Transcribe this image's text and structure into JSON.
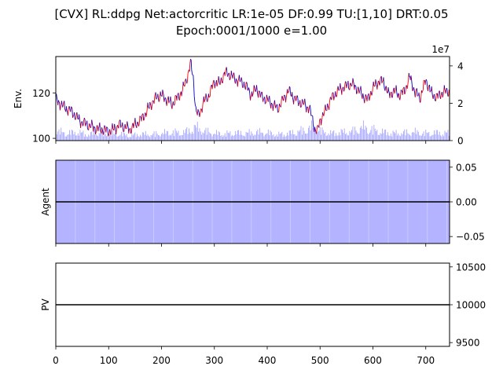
{
  "title_line1": "[CVX] RL:ddpg Net:actorcritic LR:1e-05 DF:0.99 TU:[1,10] DRT:0.05",
  "title_line2": "Epoch:0001/1000 e=1.00",
  "chart_data": [
    {
      "type": "line",
      "name": "env-panel",
      "ylabel": "Env.",
      "xlim": [
        0,
        745
      ],
      "ylim": [
        99,
        136
      ],
      "left_ticks": [
        100,
        120
      ],
      "right_axis": {
        "ylim": [
          0,
          45000000
        ],
        "ticks": [
          0,
          20000000,
          40000000
        ],
        "tick_labels": [
          "0",
          "2",
          "4"
        ],
        "offset_label": "1e7"
      },
      "colors": {
        "up": "#ff0000",
        "down": "#0000cc",
        "volume": "#8888ff"
      },
      "series": [
        {
          "values_label": "price",
          "x": [
            0,
            10,
            20,
            30,
            40,
            50,
            60,
            70,
            80,
            90,
            100,
            110,
            120,
            130,
            140,
            150,
            160,
            170,
            180,
            190,
            200,
            210,
            220,
            230,
            240,
            250,
            255,
            260,
            265,
            270,
            280,
            290,
            300,
            310,
            320,
            330,
            340,
            350,
            360,
            370,
            380,
            390,
            400,
            410,
            420,
            430,
            440,
            450,
            460,
            470,
            480,
            485,
            490,
            495,
            500,
            510,
            520,
            530,
            540,
            550,
            560,
            570,
            580,
            590,
            600,
            610,
            620,
            630,
            640,
            650,
            660,
            670,
            680,
            690,
            700,
            710,
            720,
            730,
            745
          ],
          "values": [
            117,
            115,
            113,
            112,
            109,
            107,
            106,
            105,
            104,
            104,
            103,
            104,
            106,
            105,
            104,
            106,
            108,
            111,
            115,
            118,
            119,
            117,
            115,
            118,
            121,
            128,
            133,
            127,
            112,
            110,
            116,
            119,
            125,
            124,
            129,
            128,
            126,
            125,
            123,
            119,
            122,
            118,
            117,
            115,
            113,
            117,
            121,
            118,
            116,
            115,
            113,
            109,
            104,
            103,
            108,
            112,
            117,
            120,
            122,
            123,
            124,
            122,
            119,
            117,
            122,
            125,
            125,
            119,
            121,
            119,
            121,
            127,
            120,
            118,
            126,
            120,
            118,
            120,
            121
          ]
        },
        {
          "values_label": "volume",
          "x": [
            0,
            20,
            40,
            60,
            80,
            100,
            120,
            140,
            160,
            180,
            200,
            220,
            240,
            255,
            265,
            280,
            300,
            320,
            340,
            360,
            380,
            400,
            420,
            440,
            460,
            480,
            490,
            500,
            520,
            540,
            560,
            580,
            600,
            620,
            640,
            660,
            680,
            700,
            720,
            745
          ],
          "values": [
            8000000,
            6000000,
            7000000,
            5000000,
            6500000,
            5000000,
            6000000,
            4000000,
            5500000,
            5000000,
            6000000,
            7000000,
            6500000,
            9000000,
            11000000,
            8000000,
            6000000,
            5500000,
            6500000,
            6000000,
            7000000,
            6500000,
            5000000,
            6000000,
            7500000,
            10000000,
            12000000,
            8000000,
            6000000,
            7000000,
            7500000,
            11000000,
            9000000,
            7000000,
            6000000,
            6500000,
            7000000,
            6000000,
            6500000,
            6000000
          ]
        }
      ]
    },
    {
      "type": "bar",
      "name": "agent-panel",
      "ylabel": "Agent",
      "xlim": [
        0,
        745
      ],
      "ylim": [
        -0.06,
        0.06
      ],
      "ticks": [
        -0.05,
        0,
        0.05
      ],
      "tick_labels": [
        "−0.05",
        "0.00",
        "0.05"
      ],
      "colors": {
        "fill": "#b3b3ff",
        "line": "#000000"
      },
      "series": [
        {
          "values_label": "action",
          "value": 0.0
        }
      ]
    },
    {
      "type": "line",
      "name": "pv-panel",
      "ylabel": "PV",
      "xlim": [
        0,
        745
      ],
      "ylim": [
        9450,
        10550
      ],
      "ticks": [
        9500,
        10000,
        10500
      ],
      "tick_labels": [
        "9500",
        "10000",
        "10500"
      ],
      "x_ticks": [
        0,
        100,
        200,
        300,
        400,
        500,
        600,
        700
      ],
      "x_tick_labels": [
        "0",
        "100",
        "200",
        "300",
        "400",
        "500",
        "600",
        "700"
      ],
      "series": [
        {
          "values_label": "portfolio value",
          "value": 10000
        }
      ]
    }
  ]
}
